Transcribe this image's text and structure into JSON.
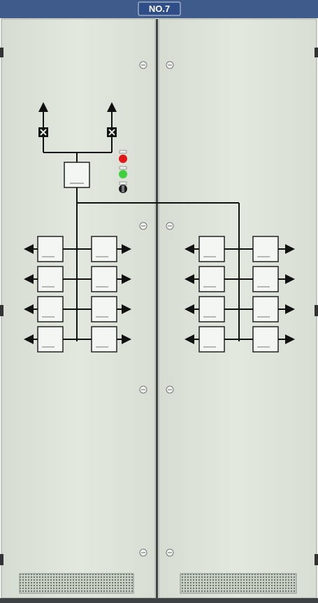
{
  "cabinet": {
    "label": "NO.7",
    "colors": {
      "panel": "#dfe5da",
      "panel_shade": "#cfd6c9",
      "top_strip": "#3e5b8c",
      "label_plate": "#2f4d86",
      "lamp_red": "#e01818",
      "lamp_green": "#3fcf3f",
      "switch": "#1a1a1a",
      "busbar": "#111111"
    },
    "doors": [
      "left-door",
      "right-door"
    ],
    "indicators": [
      "red-lamp",
      "green-lamp",
      "selector-switch"
    ],
    "main_meter_count": 1,
    "feeder_meters": {
      "left_door": 8,
      "right_door": 8
    }
  }
}
